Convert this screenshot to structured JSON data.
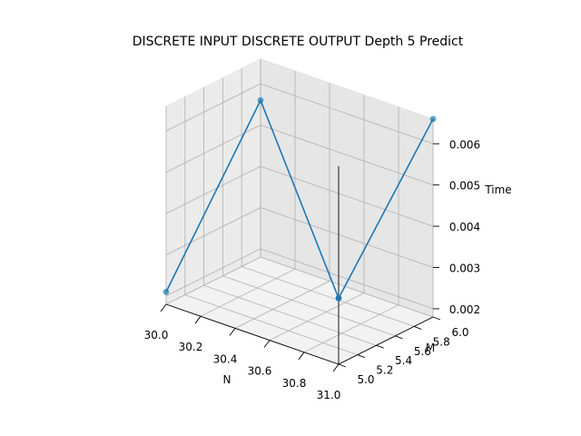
{
  "chart_data": {
    "type": "line",
    "title": "DISCRETE INPUT DISCRETE OUTPUT Depth 5 Predict",
    "xlabel": "N",
    "ylabel": "M",
    "zlabel": "Time",
    "x_ticks": [
      "30.0",
      "30.2",
      "30.4",
      "30.6",
      "30.8",
      "31.0"
    ],
    "y_ticks": [
      "5.0",
      "5.2",
      "5.4",
      "5.6",
      "5.8",
      "6.0"
    ],
    "z_ticks": [
      "0.002",
      "0.003",
      "0.004",
      "0.005",
      "0.006"
    ],
    "xlim": [
      30.0,
      31.0
    ],
    "ylim": [
      5.0,
      6.0
    ],
    "zlim": [
      0.0018,
      0.0066
    ],
    "grid": true,
    "series": [
      {
        "color": "#1f77b4",
        "points": [
          {
            "x": 30,
            "y": 5,
            "z": 0.0021
          },
          {
            "x": 30,
            "y": 6,
            "z": 0.0056
          },
          {
            "x": 31,
            "y": 5,
            "z": 0.0034
          },
          {
            "x": 31,
            "y": 6,
            "z": 0.0066
          }
        ]
      }
    ]
  }
}
